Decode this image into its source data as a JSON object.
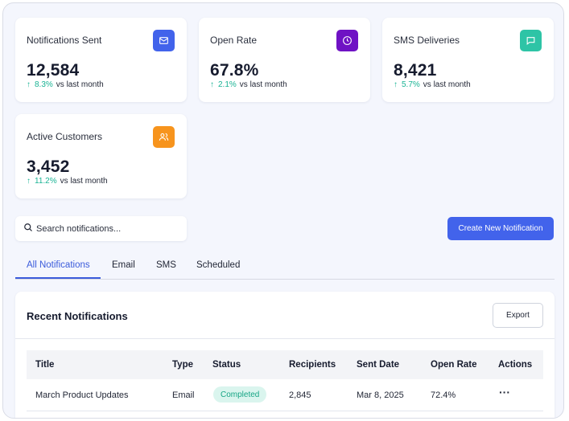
{
  "stats": [
    {
      "label": "Notifications Sent",
      "value": "12,584",
      "change": "8.3%",
      "change_suffix": "vs last month",
      "icon": "mail-icon",
      "icon_color": "#4263eb"
    },
    {
      "label": "Open Rate",
      "value": "67.8%",
      "change": "2.1%",
      "change_suffix": "vs last month",
      "icon": "clock-icon",
      "icon_color": "#6f12c4"
    },
    {
      "label": "SMS Deliveries",
      "value": "8,421",
      "change": "5.7%",
      "change_suffix": "vs last month",
      "icon": "message-icon",
      "icon_color": "#2ec4a6"
    },
    {
      "label": "Active Customers",
      "value": "3,452",
      "change": "11.2%",
      "change_suffix": "vs last month",
      "icon": "users-icon",
      "icon_color": "#f7941d"
    }
  ],
  "search": {
    "placeholder": "Search notifications..."
  },
  "actions": {
    "create_label": "Create New Notification"
  },
  "tabs": [
    {
      "label": "All Notifications",
      "active": true
    },
    {
      "label": "Email"
    },
    {
      "label": "SMS"
    },
    {
      "label": "Scheduled"
    }
  ],
  "table": {
    "title": "Recent Notifications",
    "export_label": "Export",
    "columns": [
      "Title",
      "Type",
      "Status",
      "Recipients",
      "Sent Date",
      "Open Rate",
      "Actions"
    ],
    "rows": [
      {
        "title": "March Product Updates",
        "type": "Email",
        "status": "Completed",
        "recipients": "2,845",
        "sent_date": "Mar 8, 2025",
        "open_rate": "72.4%",
        "actions": "···"
      }
    ]
  },
  "colors": {
    "accent": "#4263eb",
    "success": "#19b394",
    "background": "#f4f6fd"
  }
}
